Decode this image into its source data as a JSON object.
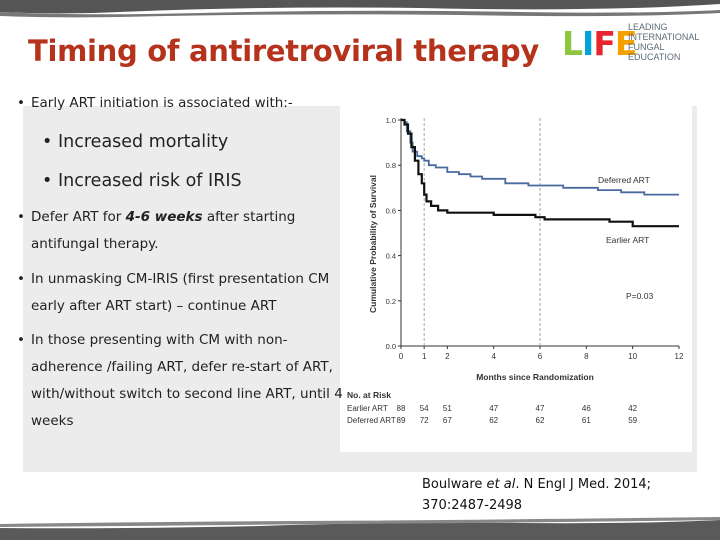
{
  "title": "Timing of antiretroviral therapy",
  "logo": {
    "word": [
      "L",
      "I",
      "F",
      "E"
    ],
    "lines": [
      "LEADING",
      "INTERNATIONAL",
      "FUNGAL",
      "EDUCATION"
    ]
  },
  "bullets": {
    "b1": "Early ART initiation is associated with:-",
    "b1a": "Increased mortality",
    "b1b": "Increased risk of IRIS",
    "b2_pre": "Defer ART for ",
    "b2_em": "4-6 weeks",
    "b2_post": " after starting",
    "b2_line2": "antifungal therapy.",
    "b3_line1": "In unmasking CM-IRIS (first presentation CM",
    "b3_line2": "early after ART start) – continue ART",
    "b4_line1": "In those presenting with CM with non-",
    "b4_line2": "adherence /failing ART, defer re-start of ART,",
    "b4_line3": "with/without switch to second line ART, until 4",
    "b4_line4": "weeks"
  },
  "citation": {
    "authors_pre": "Boulware ",
    "authors_em": "et al",
    "authors_post": ". N Engl J Med. 2014;",
    "ref": "370:2487-2498"
  },
  "chart_data": {
    "type": "line",
    "title": "",
    "xlabel": "Months since Randomization",
    "ylabel": "Cumulative Probability of Survival",
    "xlim": [
      0,
      12
    ],
    "ylim": [
      0.0,
      1.0
    ],
    "xticks": [
      0,
      1,
      2,
      4,
      6,
      8,
      10,
      12
    ],
    "yticks": [
      "0.0",
      "0.2",
      "0.4",
      "0.6",
      "0.8",
      "1.0"
    ],
    "ytick_values": [
      0.0,
      0.2,
      0.4,
      0.6,
      0.8,
      1.0
    ],
    "reference_lines_x": [
      1,
      6
    ],
    "series": [
      {
        "name": "Deferred ART",
        "color": "#4a6a9e",
        "points": [
          [
            0,
            1.0
          ],
          [
            0.15,
            0.99
          ],
          [
            0.25,
            0.95
          ],
          [
            0.4,
            0.9
          ],
          [
            0.5,
            0.86
          ],
          [
            0.7,
            0.84
          ],
          [
            0.9,
            0.83
          ],
          [
            1.0,
            0.82
          ],
          [
            1.2,
            0.8
          ],
          [
            1.5,
            0.79
          ],
          [
            2.0,
            0.77
          ],
          [
            2.5,
            0.76
          ],
          [
            3.0,
            0.75
          ],
          [
            3.5,
            0.74
          ],
          [
            4.5,
            0.72
          ],
          [
            5.5,
            0.71
          ],
          [
            6.5,
            0.71
          ],
          [
            7.0,
            0.7
          ],
          [
            8.5,
            0.69
          ],
          [
            9.5,
            0.68
          ],
          [
            10.5,
            0.67
          ],
          [
            12,
            0.67
          ]
        ]
      },
      {
        "name": "Earlier ART",
        "color": "#111111",
        "points": [
          [
            0,
            1.0
          ],
          [
            0.15,
            0.98
          ],
          [
            0.3,
            0.94
          ],
          [
            0.45,
            0.88
          ],
          [
            0.6,
            0.82
          ],
          [
            0.75,
            0.76
          ],
          [
            0.9,
            0.72
          ],
          [
            1.0,
            0.67
          ],
          [
            1.1,
            0.64
          ],
          [
            1.3,
            0.62
          ],
          [
            1.6,
            0.6
          ],
          [
            2.0,
            0.59
          ],
          [
            3.0,
            0.59
          ],
          [
            4.0,
            0.58
          ],
          [
            5.0,
            0.58
          ],
          [
            5.8,
            0.57
          ],
          [
            6.2,
            0.56
          ],
          [
            8.0,
            0.56
          ],
          [
            9.0,
            0.55
          ],
          [
            10.0,
            0.53
          ],
          [
            12,
            0.53
          ]
        ]
      }
    ],
    "annotations": [
      {
        "text": "Deferred ART"
      },
      {
        "text": "Earlier ART"
      },
      {
        "text": "P=0.03"
      }
    ],
    "risk_table": {
      "header": "No. at Risk",
      "months": [
        0,
        1,
        2,
        4,
        6,
        8,
        10
      ],
      "rows": [
        {
          "label": "Earlier ART",
          "values": [
            88,
            54,
            51,
            47,
            47,
            46,
            42
          ]
        },
        {
          "label": "Deferred ART",
          "values": [
            89,
            72,
            67,
            62,
            62,
            61,
            59
          ]
        }
      ]
    }
  }
}
